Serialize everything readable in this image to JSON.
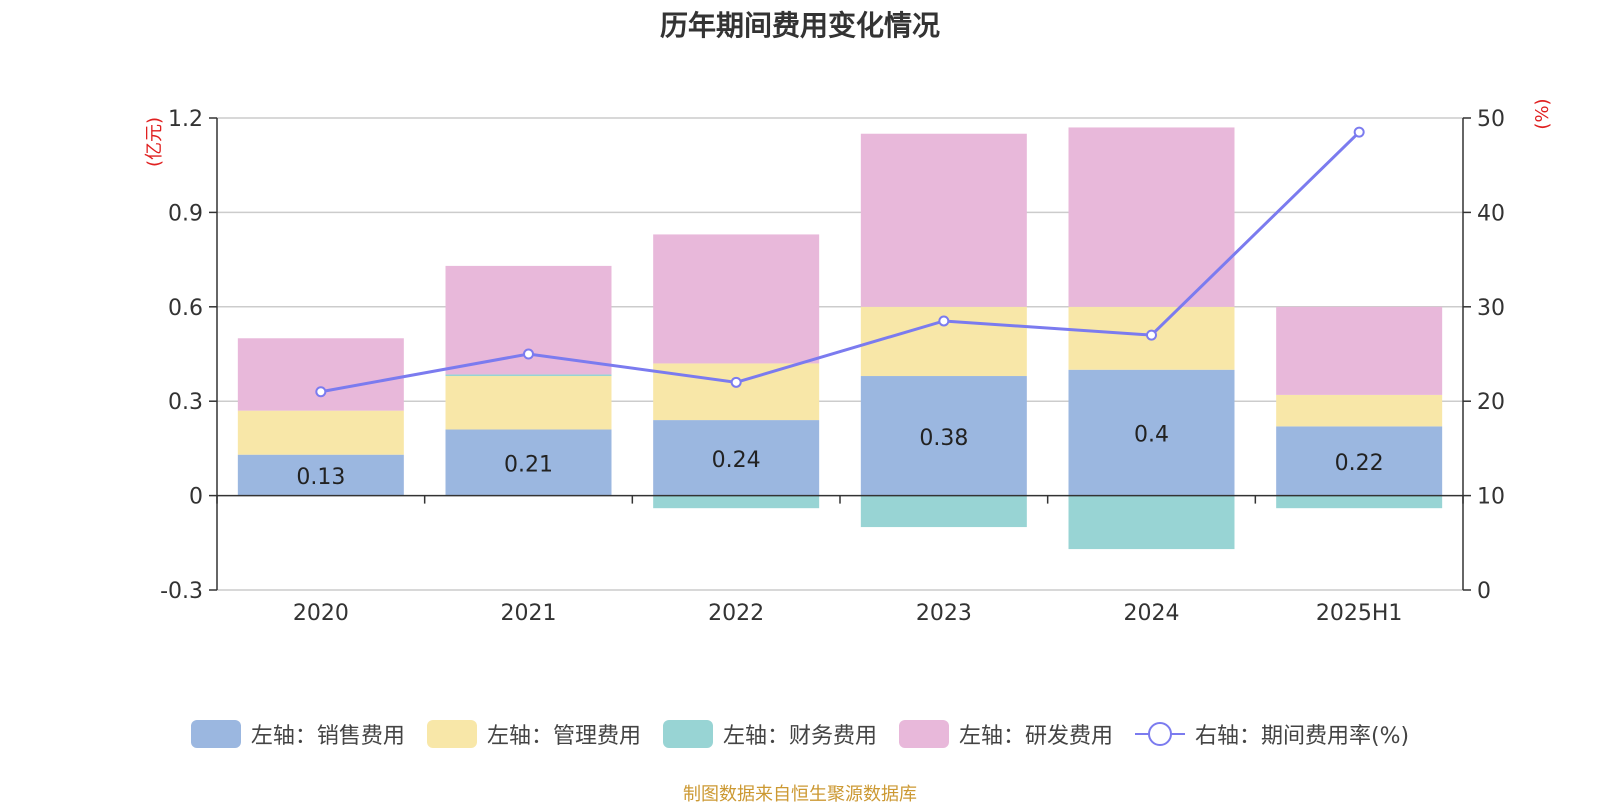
{
  "chart_data": {
    "type": "bar",
    "title": "历年期间费用变化情况",
    "categories": [
      "2020",
      "2021",
      "2022",
      "2023",
      "2024",
      "2025H1"
    ],
    "y_left": {
      "unit_label": "(亿元)",
      "ylim": [
        -0.3,
        1.2
      ],
      "ticks": [
        "-0.3",
        "0",
        "0.3",
        "0.6",
        "0.9",
        "1.2"
      ]
    },
    "y_right": {
      "unit_label": "(%)",
      "ylim": [
        0,
        50
      ],
      "ticks": [
        "0",
        "10",
        "20",
        "30",
        "40",
        "50"
      ]
    },
    "series": [
      {
        "name": "左轴：销售费用",
        "axis": "left",
        "type": "bar",
        "color": "#9bb7e0",
        "values": [
          0.13,
          0.21,
          0.24,
          0.38,
          0.4,
          0.22
        ],
        "labels": [
          "0.13",
          "0.21",
          "0.24",
          "0.38",
          "0.4",
          "0.22"
        ]
      },
      {
        "name": "左轴：管理费用",
        "axis": "left",
        "type": "bar",
        "color": "#f8e7a8",
        "values": [
          0.14,
          0.17,
          0.18,
          0.22,
          0.2,
          0.1
        ]
      },
      {
        "name": "左轴：财务费用",
        "axis": "left",
        "type": "bar",
        "color": "#98d4d4",
        "values": [
          0.0,
          0.005,
          -0.04,
          -0.1,
          -0.17,
          -0.04
        ]
      },
      {
        "name": "左轴：研发费用",
        "axis": "left",
        "type": "bar",
        "color": "#e8b8da",
        "values": [
          0.23,
          0.345,
          0.41,
          0.55,
          0.57,
          0.28
        ]
      },
      {
        "name": "右轴：期间费用率(%)",
        "axis": "right",
        "type": "line",
        "color": "#7b7bef",
        "values": [
          21.0,
          25.0,
          22.0,
          28.5,
          27.0,
          48.5
        ]
      }
    ],
    "grid": true,
    "legend_position": "bottom"
  },
  "source": "制图数据来自恒生聚源数据库"
}
